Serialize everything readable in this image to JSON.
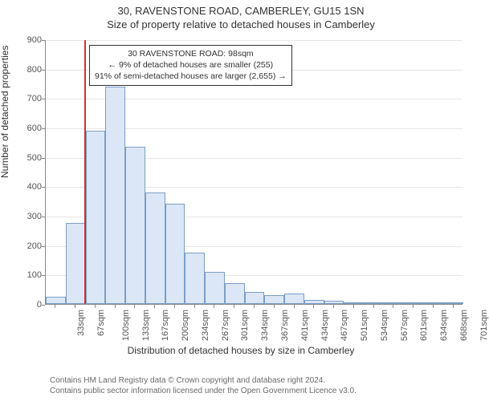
{
  "titles": {
    "line1": "30, RAVENSTONE ROAD, CAMBERLEY, GU15 1SN",
    "line2": "Size of property relative to detached houses in Camberley"
  },
  "axes": {
    "ylabel": "Number of detached properties",
    "xlabel": "Distribution of detached houses by size in Camberley",
    "ylim": [
      0,
      900
    ],
    "ytick_step": 100,
    "label_fontsize": 12,
    "tick_fontsize": 11,
    "grid_color": "#e6e6e6",
    "axis_color": "#888888"
  },
  "chart": {
    "type": "histogram",
    "bar_fill": "#dbe7f6",
    "bar_stroke": "#7a9ec7",
    "background_color": "#ffffff",
    "bin_width_sqm": 33,
    "categories": [
      "33sqm",
      "67sqm",
      "100sqm",
      "133sqm",
      "167sqm",
      "200sqm",
      "234sqm",
      "267sqm",
      "301sqm",
      "334sqm",
      "367sqm",
      "401sqm",
      "434sqm",
      "467sqm",
      "501sqm",
      "534sqm",
      "567sqm",
      "601sqm",
      "634sqm",
      "668sqm",
      "701sqm"
    ],
    "values": [
      25,
      275,
      590,
      740,
      535,
      380,
      340,
      175,
      110,
      70,
      40,
      30,
      35,
      15,
      10,
      5,
      3,
      2,
      2,
      1,
      0
    ]
  },
  "reference": {
    "value_sqm": 98,
    "line_color": "#cc3333",
    "annotation": {
      "line1": "30 RAVENSTONE ROAD: 98sqm",
      "line2": "← 9% of detached houses are smaller (255)",
      "line3": "91% of semi-detached houses are larger (2,655) →",
      "border_color": "#333333",
      "background": "#ffffff",
      "fontsize": 10.5
    }
  },
  "footer": {
    "line1": "Contains HM Land Registry data © Crown copyright and database right 2024.",
    "line2": "Contains public sector information licensed under the Open Government Licence v3.0."
  }
}
